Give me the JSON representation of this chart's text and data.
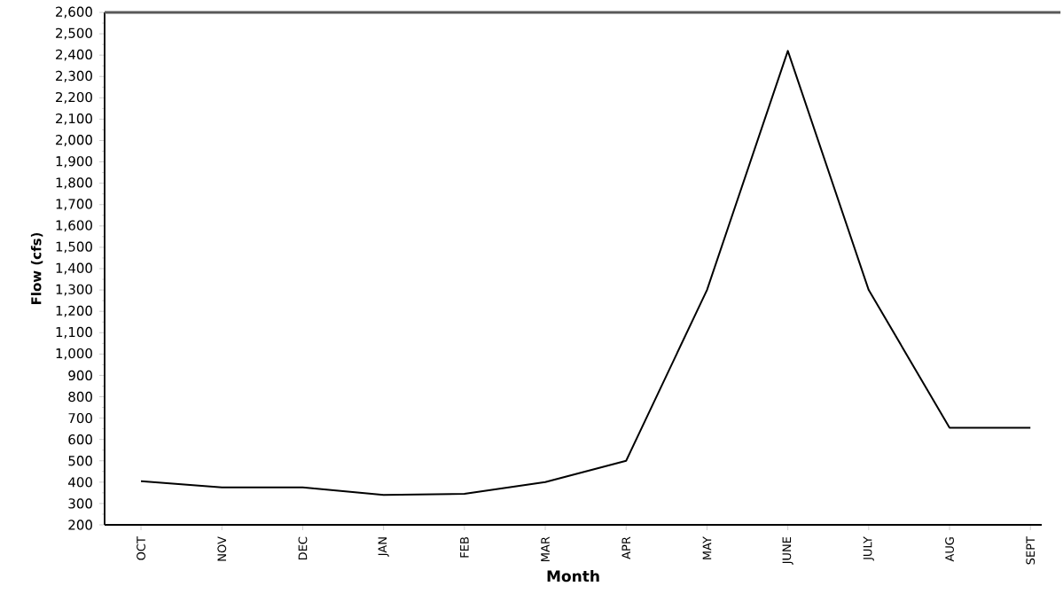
{
  "chart_data": {
    "type": "line",
    "xlabel": "Month",
    "ylabel": "Flow (cfs)",
    "categories": [
      "OCT",
      "NOV",
      "DEC",
      "JAN",
      "FEB",
      "MAR",
      "APR",
      "MAY",
      "JUNE",
      "JULY",
      "AUG",
      "SEPT"
    ],
    "series": [
      {
        "color": "#000000",
        "values": [
          405,
          375,
          375,
          340,
          345,
          400,
          500,
          1300,
          2420,
          1300,
          655,
          655
        ]
      }
    ],
    "ylim": [
      200,
      2600
    ],
    "yticks": [
      200,
      300,
      400,
      500,
      600,
      700,
      800,
      900,
      {
        "value": 1000,
        "label": "1,000"
      },
      {
        "value": 1100,
        "label": "1,100"
      },
      {
        "value": 1200,
        "label": "1,200"
      },
      {
        "value": 1300,
        "label": "1,300"
      },
      {
        "value": 1400,
        "label": "1,400"
      },
      {
        "value": 1500,
        "label": "1,500"
      },
      {
        "value": 1600,
        "label": "1,600"
      },
      {
        "value": 1700,
        "label": "1,700"
      },
      {
        "value": 1800,
        "label": "1,800"
      },
      {
        "value": 1900,
        "label": "1,900"
      },
      {
        "value": 2000,
        "label": "2,000"
      },
      {
        "value": 2100,
        "label": "2,100"
      },
      {
        "value": 2200,
        "label": "2,200"
      },
      {
        "value": 2300,
        "label": "2,300"
      },
      {
        "value": 2400,
        "label": "2,400"
      },
      {
        "value": 2500,
        "label": "2,500"
      },
      {
        "value": 2600,
        "label": "2,600"
      }
    ],
    "marker": "none",
    "line_style": "solid"
  }
}
